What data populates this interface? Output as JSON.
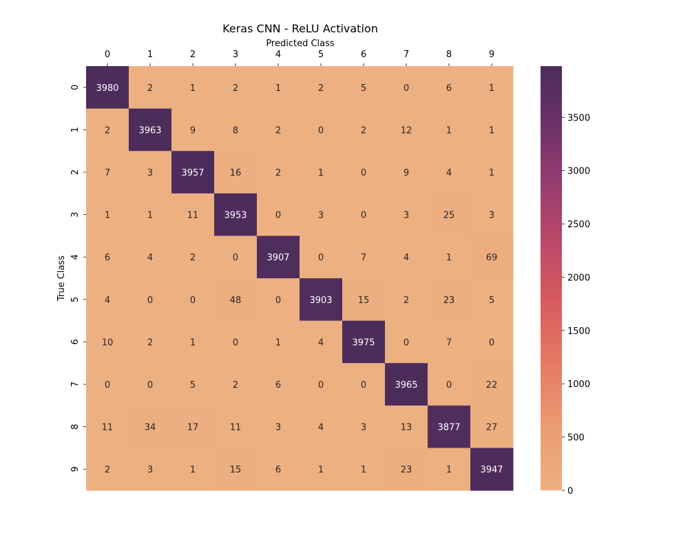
{
  "chart_data": {
    "type": "heatmap",
    "title": "Keras CNN - ReLU Activation",
    "xlabel": "Predicted Class",
    "ylabel": "True Class",
    "x_categories": [
      "0",
      "1",
      "2",
      "3",
      "4",
      "5",
      "6",
      "7",
      "8",
      "9"
    ],
    "y_categories": [
      "0",
      "1",
      "2",
      "3",
      "4",
      "5",
      "6",
      "7",
      "8",
      "9"
    ],
    "x_axis_position": "top",
    "values": [
      [
        3980,
        2,
        1,
        2,
        1,
        2,
        5,
        0,
        6,
        1
      ],
      [
        2,
        3963,
        9,
        8,
        2,
        0,
        2,
        12,
        1,
        1
      ],
      [
        7,
        3,
        3957,
        16,
        2,
        1,
        0,
        9,
        4,
        1
      ],
      [
        1,
        1,
        11,
        3953,
        0,
        3,
        0,
        3,
        25,
        3
      ],
      [
        6,
        4,
        2,
        0,
        3907,
        0,
        7,
        4,
        1,
        69
      ],
      [
        4,
        0,
        0,
        48,
        0,
        3903,
        15,
        2,
        23,
        5
      ],
      [
        10,
        2,
        1,
        0,
        1,
        4,
        3975,
        0,
        7,
        0
      ],
      [
        0,
        0,
        5,
        2,
        6,
        0,
        0,
        3965,
        0,
        22
      ],
      [
        11,
        34,
        17,
        11,
        3,
        4,
        3,
        13,
        3877,
        27
      ],
      [
        2,
        3,
        1,
        15,
        6,
        1,
        1,
        23,
        1,
        3947
      ]
    ],
    "colorbar": {
      "min": 0,
      "max": 3980,
      "ticks": [
        0,
        500,
        1000,
        1500,
        2000,
        2500,
        3000,
        3500
      ],
      "colormap": "flare",
      "low_color": "#edb081",
      "high_color": "#4b2c5b"
    },
    "grid": false,
    "legend": "colorbar-right"
  }
}
